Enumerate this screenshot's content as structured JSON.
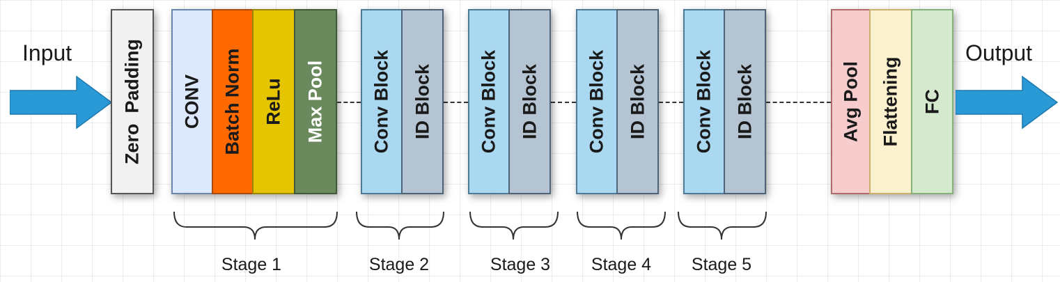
{
  "input_label": "Input",
  "output_label": "Output",
  "blocks": {
    "zero_padding": "Zero  Padding",
    "conv": "CONV",
    "batch_norm": "Batch Norm",
    "relu": "ReLu",
    "max_pool": "Max Pool",
    "conv_block": "Conv Block",
    "id_block": "ID Block",
    "avg_pool": "Avg Pool",
    "flattening": "Flattening",
    "fc": "FC"
  },
  "stages": [
    "Stage 1",
    "Stage 2",
    "Stage 3",
    "Stage 4",
    "Stage 5"
  ],
  "colors": {
    "arrow": "#2a9ad6",
    "zero_padding": "#f1f1f1",
    "conv": "#dce8fb",
    "batch_norm": "#ff6a00",
    "relu": "#e5c400",
    "max_pool": "#6a8a5e",
    "conv_block": "#a9d8f0",
    "id_block": "#b5c4d2",
    "avg_pool": "#f6cccc",
    "flattening": "#fcf1cf",
    "fc": "#d5e9ce"
  }
}
